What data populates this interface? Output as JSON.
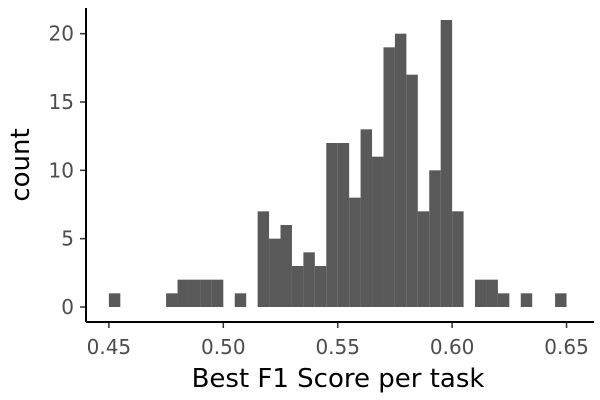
{
  "chart_data": {
    "type": "bar",
    "subtype": "histogram",
    "title": "",
    "xlabel": "Best F1 Score per task",
    "ylabel": "count",
    "xlim": [
      0.44,
      0.662
    ],
    "ylim": [
      0,
      21
    ],
    "grid": false,
    "legend": "none",
    "bar_color": "#595959",
    "axis_color": "#000000",
    "tick_label_color": "#4d4d4d",
    "bin_width": 0.005,
    "x_ticks": [
      {
        "value": 0.45,
        "label": "0.45"
      },
      {
        "value": 0.5,
        "label": "0.50"
      },
      {
        "value": 0.55,
        "label": "0.55"
      },
      {
        "value": 0.6,
        "label": "0.60"
      },
      {
        "value": 0.65,
        "label": "0.65"
      }
    ],
    "y_ticks": [
      {
        "value": 0,
        "label": "0"
      },
      {
        "value": 5,
        "label": "5"
      },
      {
        "value": 10,
        "label": "10"
      },
      {
        "value": 15,
        "label": "15"
      },
      {
        "value": 20,
        "label": "20"
      }
    ],
    "bins": [
      {
        "start": 0.45,
        "count": 1
      },
      {
        "start": 0.475,
        "count": 1
      },
      {
        "start": 0.48,
        "count": 2
      },
      {
        "start": 0.485,
        "count": 2
      },
      {
        "start": 0.49,
        "count": 2
      },
      {
        "start": 0.495,
        "count": 2
      },
      {
        "start": 0.505,
        "count": 1
      },
      {
        "start": 0.515,
        "count": 7
      },
      {
        "start": 0.52,
        "count": 5
      },
      {
        "start": 0.525,
        "count": 6
      },
      {
        "start": 0.53,
        "count": 3
      },
      {
        "start": 0.535,
        "count": 4
      },
      {
        "start": 0.54,
        "count": 3
      },
      {
        "start": 0.545,
        "count": 12
      },
      {
        "start": 0.55,
        "count": 12
      },
      {
        "start": 0.555,
        "count": 8
      },
      {
        "start": 0.56,
        "count": 13
      },
      {
        "start": 0.565,
        "count": 11
      },
      {
        "start": 0.57,
        "count": 19
      },
      {
        "start": 0.575,
        "count": 20
      },
      {
        "start": 0.58,
        "count": 17
      },
      {
        "start": 0.585,
        "count": 7
      },
      {
        "start": 0.59,
        "count": 10
      },
      {
        "start": 0.595,
        "count": 21
      },
      {
        "start": 0.6,
        "count": 7
      },
      {
        "start": 0.61,
        "count": 2
      },
      {
        "start": 0.615,
        "count": 2
      },
      {
        "start": 0.62,
        "count": 1
      },
      {
        "start": 0.63,
        "count": 1
      },
      {
        "start": 0.645,
        "count": 1
      }
    ]
  }
}
